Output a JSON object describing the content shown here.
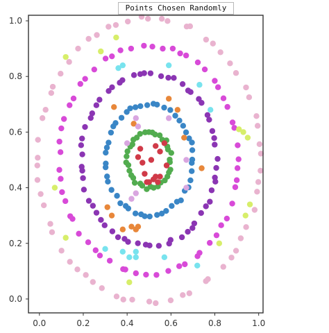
{
  "chart_data": {
    "type": "scatter",
    "title": "Points Chosen Randomly",
    "xlabel": "",
    "ylabel": "",
    "xlim": [
      -0.05,
      1.02
    ],
    "ylim": [
      -0.05,
      1.02
    ],
    "xticks": [
      "0.0",
      "0.2",
      "0.4",
      "0.6",
      "0.8",
      "1.0"
    ],
    "yticks": [
      "0.0",
      "0.2",
      "0.4",
      "0.6",
      "0.8",
      "1.0"
    ],
    "grid": false,
    "legend": "none",
    "rings": [
      {
        "color": "#e9b3cf",
        "center": [
          0.5,
          0.5
        ],
        "radius": 0.51,
        "count": 62
      },
      {
        "color": "#d84ad8",
        "center": [
          0.5,
          0.5
        ],
        "radius": 0.41,
        "count": 58
      },
      {
        "color": "#8b35b3",
        "center": [
          0.5,
          0.5
        ],
        "radius": 0.31,
        "count": 60
      },
      {
        "color": "#3a86c6",
        "center": [
          0.5,
          0.5
        ],
        "radius": 0.2,
        "count": 48
      },
      {
        "color": "#52ac4f",
        "center": [
          0.5,
          0.5
        ],
        "radius": 0.1,
        "count": 36
      }
    ],
    "scattered_points": [
      {
        "color": "#d03a48",
        "points": [
          [
            0.45,
            0.51
          ],
          [
            0.46,
            0.54
          ],
          [
            0.47,
            0.49
          ],
          [
            0.48,
            0.45
          ],
          [
            0.49,
            0.42
          ],
          [
            0.5,
            0.42
          ],
          [
            0.52,
            0.43
          ],
          [
            0.53,
            0.44
          ],
          [
            0.54,
            0.42
          ],
          [
            0.55,
            0.44
          ],
          [
            0.53,
            0.55
          ],
          [
            0.55,
            0.53
          ],
          [
            0.58,
            0.48
          ],
          [
            0.57,
            0.56
          ],
          [
            0.51,
            0.5
          ]
        ]
      },
      {
        "color": "#e8873a",
        "points": [
          [
            0.34,
            0.69
          ],
          [
            0.31,
            0.33
          ],
          [
            0.33,
            0.3
          ],
          [
            0.38,
            0.25
          ],
          [
            0.42,
            0.26
          ],
          [
            0.44,
            0.25
          ],
          [
            0.45,
            0.26
          ],
          [
            0.43,
            0.63
          ],
          [
            0.59,
            0.72
          ],
          [
            0.63,
            0.68
          ],
          [
            0.66,
            0.58
          ],
          [
            0.74,
            0.47
          ]
        ]
      },
      {
        "color": "#d9a6e0",
        "points": [
          [
            0.4,
            0.56
          ],
          [
            0.44,
            0.65
          ],
          [
            0.45,
            0.62
          ],
          [
            0.59,
            0.65
          ],
          [
            0.67,
            0.5
          ],
          [
            0.67,
            0.4
          ],
          [
            0.42,
            0.36
          ],
          [
            0.44,
            0.38
          ]
        ]
      },
      {
        "color": "#78e3ee",
        "points": [
          [
            0.36,
            0.83
          ],
          [
            0.38,
            0.84
          ],
          [
            0.59,
            0.84
          ],
          [
            0.73,
            0.77
          ],
          [
            0.78,
            0.68
          ],
          [
            0.72,
            0.12
          ],
          [
            0.57,
            0.15
          ],
          [
            0.38,
            0.17
          ],
          [
            0.41,
            0.15
          ],
          [
            0.44,
            0.17
          ],
          [
            0.44,
            0.15
          ],
          [
            0.3,
            0.18
          ]
        ]
      },
      {
        "color": "#d7ee6a",
        "points": [
          [
            0.12,
            0.87
          ],
          [
            0.28,
            0.89
          ],
          [
            0.35,
            0.94
          ],
          [
            0.91,
            0.61
          ],
          [
            0.93,
            0.6
          ],
          [
            0.95,
            0.58
          ],
          [
            0.07,
            0.4
          ],
          [
            0.12,
            0.22
          ],
          [
            0.94,
            0.3
          ],
          [
            0.96,
            0.34
          ],
          [
            0.82,
            0.2
          ],
          [
            0.41,
            0.06
          ]
        ]
      }
    ]
  }
}
